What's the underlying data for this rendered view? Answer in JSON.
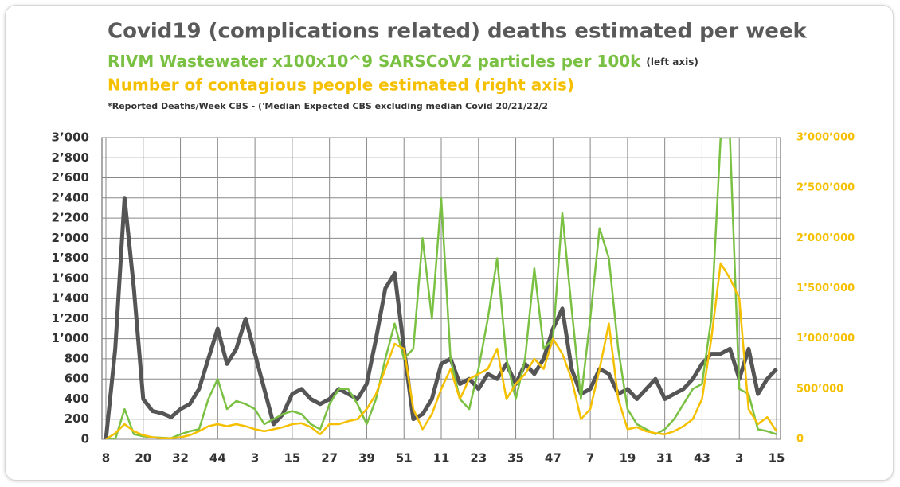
{
  "chart_data": {
    "type": "line",
    "footnote": "*Reported Deaths/Week CBS - ('Median Expected CBS excluding median Covid 20/21/22/2",
    "categories": [
      "8",
      null,
      null,
      null,
      "20",
      null,
      null,
      null,
      "32",
      null,
      null,
      null,
      "44",
      null,
      null,
      null,
      "3",
      null,
      null,
      null,
      "15",
      null,
      null,
      null,
      "27",
      null,
      null,
      null,
      "39",
      null,
      null,
      null,
      "51",
      null,
      null,
      null,
      "11",
      null,
      null,
      null,
      "23",
      null,
      null,
      null,
      "35",
      null,
      null,
      null,
      "47",
      null,
      null,
      null,
      "7",
      null,
      null,
      null,
      "19",
      null,
      null,
      null,
      "31",
      null,
      null,
      null,
      "43",
      null,
      null,
      null,
      "3",
      null,
      null,
      null,
      "15"
    ],
    "series": [
      {
        "name": "Covid19 (complications related) deaths estimated per week",
        "color": "#555555",
        "axis": "y",
        "values": [
          0,
          900,
          2400,
          1500,
          400,
          280,
          260,
          220,
          300,
          350,
          500,
          800,
          1100,
          750,
          900,
          1200,
          850,
          500,
          150,
          250,
          450,
          500,
          400,
          350,
          400,
          500,
          450,
          400,
          550,
          1000,
          1500,
          1650,
          900,
          200,
          250,
          400,
          750,
          800,
          550,
          600,
          500,
          650,
          600,
          750,
          550,
          750,
          650,
          800,
          1100,
          1300,
          700,
          450,
          500,
          700,
          650,
          450,
          500,
          400,
          500,
          600,
          400,
          450,
          500,
          600,
          750,
          850,
          850,
          900,
          600,
          900,
          450,
          600,
          700
        ]
      },
      {
        "name": "RIVM Wastewater x100x10^9 SARSCoV2 particles per 100k",
        "axis_note": "(left axis)",
        "color": "#7ac143",
        "axis": "y",
        "values": [
          0,
          0,
          300,
          50,
          30,
          20,
          15,
          10,
          50,
          80,
          100,
          400,
          600,
          300,
          380,
          350,
          300,
          150,
          200,
          250,
          280,
          250,
          150,
          100,
          350,
          500,
          500,
          350,
          150,
          400,
          800,
          1150,
          800,
          900,
          2000,
          1200,
          2400,
          800,
          400,
          300,
          700,
          1200,
          1800,
          800,
          400,
          800,
          1700,
          900,
          1000,
          2250,
          1300,
          400,
          1200,
          2100,
          1800,
          900,
          300,
          150,
          100,
          50,
          100,
          200,
          350,
          500,
          550,
          1200,
          3000,
          3000,
          500,
          450,
          100,
          80,
          50
        ]
      },
      {
        "name": "Number of contagious people estimated (right axis)",
        "color": "#f5c000",
        "axis": "y2",
        "values": [
          0,
          60000,
          150000,
          80000,
          40000,
          20000,
          10000,
          10000,
          20000,
          40000,
          80000,
          130000,
          150000,
          130000,
          150000,
          130000,
          100000,
          80000,
          100000,
          120000,
          150000,
          160000,
          120000,
          50000,
          150000,
          150000,
          180000,
          200000,
          300000,
          450000,
          700000,
          950000,
          900000,
          300000,
          100000,
          250000,
          500000,
          700000,
          400000,
          600000,
          650000,
          700000,
          900000,
          400000,
          550000,
          650000,
          800000,
          700000,
          1000000,
          850000,
          600000,
          200000,
          300000,
          700000,
          1150000,
          400000,
          100000,
          120000,
          80000,
          60000,
          50000,
          80000,
          130000,
          200000,
          400000,
          1000000,
          1750000,
          1600000,
          1400000,
          300000,
          150000,
          220000,
          80000
        ]
      }
    ],
    "ylim": [
      0,
      3000
    ],
    "yticks": [
      0,
      200,
      400,
      600,
      800,
      {
        "value": 1000,
        "label": "1’000"
      },
      {
        "value": 1200,
        "label": "1’200"
      },
      {
        "value": 1400,
        "label": "1’400"
      },
      {
        "value": 1600,
        "label": "1’600"
      },
      {
        "value": 1800,
        "label": "1’800"
      },
      {
        "value": 2000,
        "label": "2’000"
      },
      {
        "value": 2200,
        "label": "2’200"
      },
      {
        "value": 2400,
        "label": "2’400"
      },
      {
        "value": 2600,
        "label": "2’600"
      },
      {
        "value": 2800,
        "label": "2’800"
      },
      {
        "value": 3000,
        "label": "3’000"
      }
    ],
    "y2lim": [
      0,
      3000000
    ],
    "y2ticks": [
      0,
      {
        "value": 500000,
        "label": "500’000"
      },
      {
        "value": 1000000,
        "label": "1’000’000"
      },
      {
        "value": 1500000,
        "label": "1’500’000"
      },
      {
        "value": 2000000,
        "label": "2’000’000"
      },
      {
        "value": 2500000,
        "label": "2’500’000"
      },
      {
        "value": 3000000,
        "label": "3’000’000"
      }
    ],
    "grid": true
  }
}
